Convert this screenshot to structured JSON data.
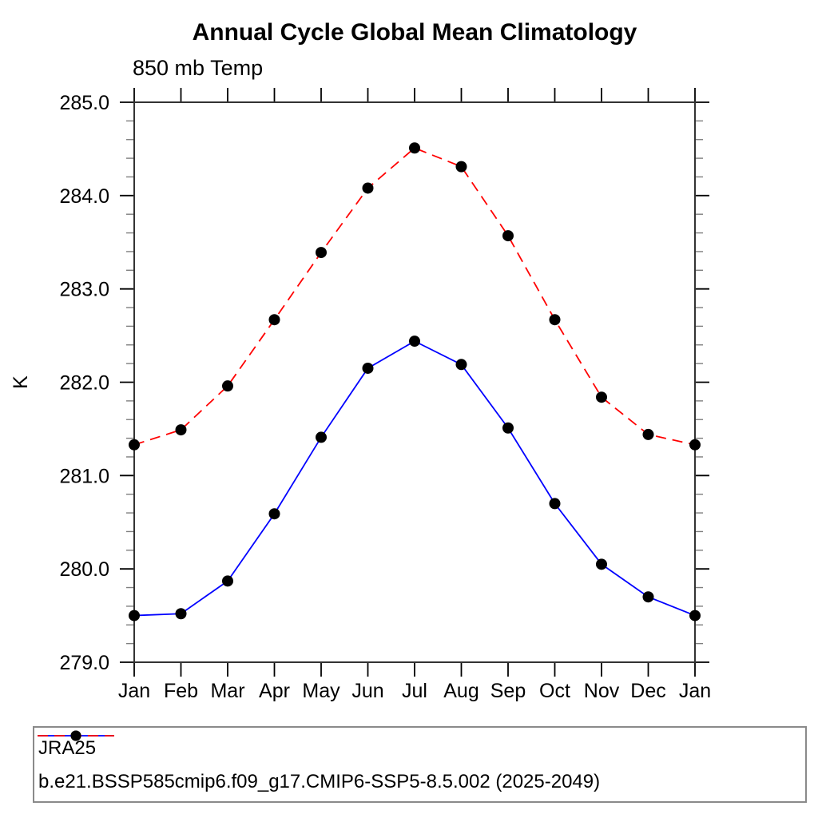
{
  "chart_data": {
    "type": "line",
    "title": "Annual Cycle Global Mean Climatology",
    "subtitle": "850 mb Temp",
    "ylabel": "K",
    "categories": [
      "Jan",
      "Feb",
      "Mar",
      "Apr",
      "May",
      "Jun",
      "Jul",
      "Aug",
      "Sep",
      "Oct",
      "Nov",
      "Dec",
      "Jan"
    ],
    "ylim": [
      279.0,
      285.0
    ],
    "ytick_labels": [
      "285.0",
      "284.0",
      "283.0",
      "282.0",
      "281.0",
      "280.0",
      "279.0"
    ],
    "ytick_major_interval": 1.0,
    "ytick_minor_interval": 0.2,
    "grid": false,
    "legend_position": "bottom",
    "marker": "filled-circle",
    "marker_color": "#000000",
    "series": [
      {
        "name": "JRA25",
        "color": "#0000ff",
        "line_style": "solid",
        "values": [
          279.5,
          279.52,
          279.87,
          280.59,
          281.41,
          282.15,
          282.44,
          282.19,
          281.51,
          280.7,
          280.05,
          279.7,
          279.5
        ]
      },
      {
        "name": "b.e21.BSSP585cmip6.f09_g17.CMIP6-SSP5-8.5.002 (2025-2049)",
        "color": "#ff0000",
        "line_style": "dashed",
        "values": [
          281.33,
          281.49,
          281.96,
          282.67,
          283.39,
          284.08,
          284.51,
          284.31,
          283.57,
          282.67,
          281.84,
          281.44,
          281.33
        ]
      }
    ]
  }
}
